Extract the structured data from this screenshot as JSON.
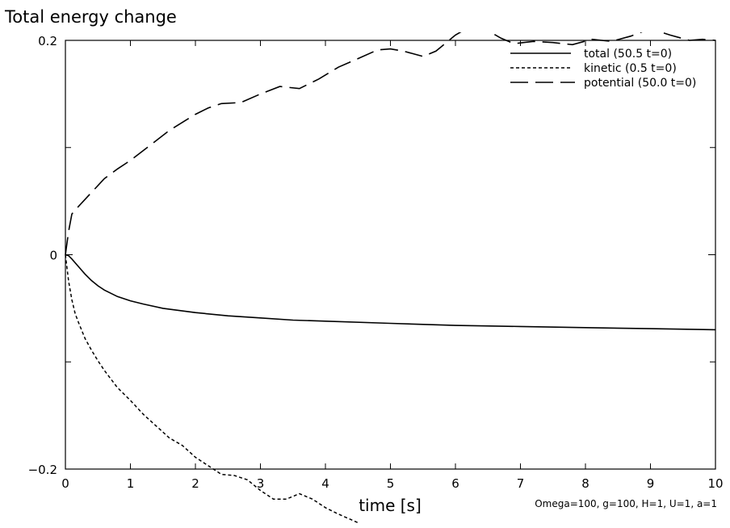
{
  "chart_data": {
    "type": "line",
    "title": "Total energy change",
    "xlabel": "time [s]",
    "ylabel": "",
    "xlim": [
      0,
      10
    ],
    "ylim": [
      -0.2,
      0.2
    ],
    "x_ticks": [
      0,
      1,
      2,
      3,
      4,
      5,
      6,
      7,
      8,
      9,
      10
    ],
    "x_tick_labels": [
      "0",
      "1",
      "2",
      "3",
      "4",
      "5",
      "6",
      "7",
      "8",
      "9",
      "10"
    ],
    "y_ticks": [
      0.2,
      0,
      -0.2
    ],
    "y_tick_labels": [
      "0.2",
      "0",
      "−0.2"
    ],
    "grid": false,
    "legend_position": "top-right",
    "annotation": "Omega=100, g=100, H=1, U=1, a=1",
    "series": [
      {
        "name": "total (50.5 t=0)",
        "style": "solid",
        "x": [
          0,
          0.05,
          0.1,
          0.2,
          0.3,
          0.4,
          0.5,
          0.6,
          0.8,
          1.0,
          1.2,
          1.5,
          2.0,
          2.5,
          3.0,
          3.5,
          4.0,
          5.0,
          6.0,
          7.0,
          8.0,
          9.0,
          10.0
        ],
        "y": [
          0,
          -0.001,
          -0.004,
          -0.011,
          -0.018,
          -0.024,
          -0.029,
          -0.033,
          -0.039,
          -0.043,
          -0.046,
          -0.05,
          -0.054,
          -0.057,
          -0.059,
          -0.061,
          -0.062,
          -0.064,
          -0.066,
          -0.067,
          -0.068,
          -0.069,
          -0.07
        ]
      },
      {
        "name": "kinetic (0.5 t=0)",
        "style": "dashed",
        "x": [
          0,
          0.05,
          0.1,
          0.15,
          0.2,
          0.3,
          0.4,
          0.5,
          0.6,
          0.8,
          1.0,
          1.2,
          1.4,
          1.6,
          1.8,
          2.0,
          2.2,
          2.4,
          2.6,
          2.8,
          3.0,
          3.2,
          3.4,
          3.6,
          3.8,
          4.0,
          4.2,
          4.5
        ],
        "y": [
          0,
          -0.025,
          -0.042,
          -0.055,
          -0.063,
          -0.078,
          -0.089,
          -0.099,
          -0.108,
          -0.124,
          -0.136,
          -0.149,
          -0.16,
          -0.171,
          -0.178,
          -0.189,
          -0.197,
          -0.205,
          -0.206,
          -0.21,
          -0.22,
          -0.228,
          -0.228,
          -0.223,
          -0.228,
          -0.236,
          -0.242,
          -0.25
        ]
      },
      {
        "name": "potential (50.0 t=0)",
        "style": "long-dash",
        "x": [
          0,
          0.05,
          0.1,
          0.2,
          0.4,
          0.6,
          0.8,
          1.0,
          1.3,
          1.6,
          2.0,
          2.2,
          2.4,
          2.7,
          3.0,
          3.3,
          3.6,
          3.9,
          4.2,
          4.5,
          4.8,
          5.0,
          5.2,
          5.5,
          5.7,
          6.0,
          6.2,
          6.5,
          6.7,
          6.9,
          7.2,
          7.5,
          7.8,
          8.1,
          8.4,
          8.7,
          9.0,
          9.3,
          9.6,
          9.8,
          10.0
        ],
        "y": [
          0,
          0.022,
          0.038,
          0.045,
          0.058,
          0.071,
          0.08,
          0.088,
          0.102,
          0.116,
          0.131,
          0.137,
          0.141,
          0.142,
          0.15,
          0.157,
          0.155,
          0.164,
          0.175,
          0.183,
          0.191,
          0.192,
          0.19,
          0.185,
          0.19,
          0.205,
          0.212,
          0.209,
          0.202,
          0.197,
          0.199,
          0.198,
          0.196,
          0.201,
          0.199,
          0.204,
          0.211,
          0.205,
          0.2,
          0.201,
          0.2
        ]
      }
    ]
  }
}
